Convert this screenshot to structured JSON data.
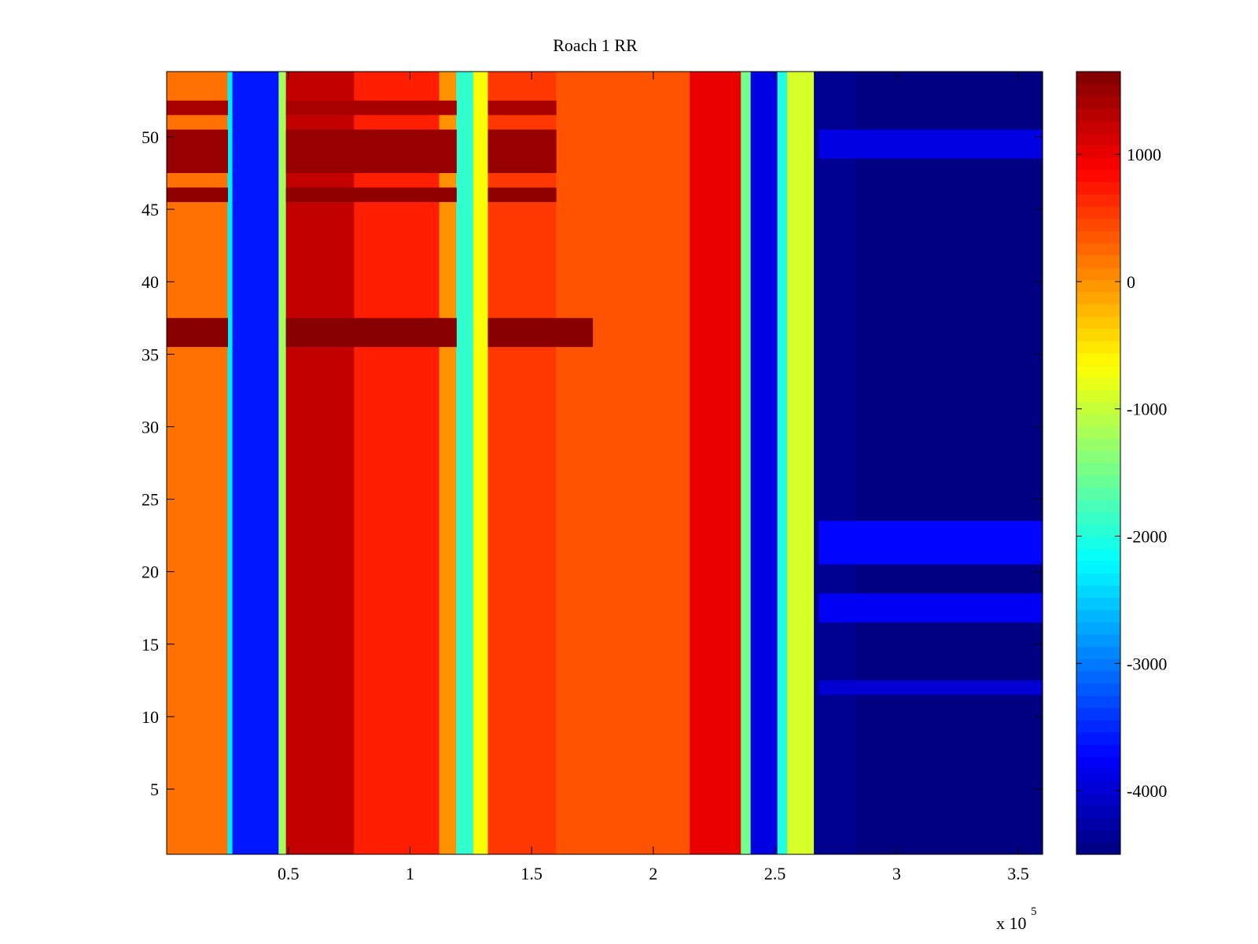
{
  "chart_data": {
    "type": "heatmap",
    "title": "Roach 1 RR",
    "xlabel": "",
    "ylabel": "",
    "x_range": [
      0,
      360000
    ],
    "y_range": [
      0.5,
      54.5
    ],
    "x_ticks": [
      50000,
      100000,
      150000,
      200000,
      250000,
      300000,
      350000
    ],
    "x_tick_labels": [
      "0.5",
      "1",
      "1.5",
      "2",
      "2.5",
      "3",
      "3.5"
    ],
    "x_exponent_label": "x 10",
    "x_exponent_power": "5",
    "y_ticks": [
      5,
      10,
      15,
      20,
      25,
      30,
      35,
      40,
      45,
      50
    ],
    "y_tick_labels": [
      "5",
      "10",
      "15",
      "20",
      "25",
      "30",
      "35",
      "40",
      "45",
      "50"
    ],
    "colorbar": {
      "colormap": "jet",
      "range": [
        -4500,
        1650
      ],
      "ticks": [
        1000,
        0,
        -1000,
        -2000,
        -3000,
        -4000
      ],
      "tick_labels": [
        "1000",
        "0",
        "-1000",
        "-2000",
        "-3000",
        "-4000"
      ]
    },
    "column_profile": [
      {
        "x_start": 0,
        "x_end": 25000,
        "value": 200
      },
      {
        "x_start": 25000,
        "x_end": 27000,
        "value": -2300
      },
      {
        "x_start": 27000,
        "x_end": 46000,
        "value": -3600
      },
      {
        "x_start": 46000,
        "x_end": 49000,
        "value": -1200
      },
      {
        "x_start": 49000,
        "x_end": 77000,
        "value": 1250
      },
      {
        "x_start": 77000,
        "x_end": 112000,
        "value": 700
      },
      {
        "x_start": 112000,
        "x_end": 119000,
        "value": 0
      },
      {
        "x_start": 119000,
        "x_end": 126000,
        "value": -1900
      },
      {
        "x_start": 126000,
        "x_end": 132000,
        "value": -700
      },
      {
        "x_start": 132000,
        "x_end": 160000,
        "value": 550
      },
      {
        "x_start": 160000,
        "x_end": 215000,
        "value": 380
      },
      {
        "x_start": 215000,
        "x_end": 236000,
        "value": 1000
      },
      {
        "x_start": 236000,
        "x_end": 240000,
        "value": -1500
      },
      {
        "x_start": 240000,
        "x_end": 251000,
        "value": -3900
      },
      {
        "x_start": 251000,
        "x_end": 255000,
        "value": -2000
      },
      {
        "x_start": 255000,
        "x_end": 266000,
        "value": -900
      },
      {
        "x_start": 266000,
        "x_end": 283000,
        "value": -4400
      },
      {
        "x_start": 283000,
        "x_end": 360000,
        "value": -4500
      }
    ],
    "row_bands": [
      {
        "y_start": 35.5,
        "y_end": 37.5,
        "x_end": 175000,
        "value": 1600
      },
      {
        "y_start": 45.5,
        "y_end": 46.5,
        "x_end": 160000,
        "value": 1550
      },
      {
        "y_start": 47.5,
        "y_end": 50.5,
        "x_end": 160000,
        "value": 1500
      },
      {
        "y_start": 51.5,
        "y_end": 52.5,
        "x_end": 160000,
        "value": 1400
      },
      {
        "y_start": 20.5,
        "y_end": 23.5,
        "x_end": 360000,
        "value": -3700
      },
      {
        "y_start": 16.5,
        "y_end": 18.5,
        "x_end": 360000,
        "value": -3800
      },
      {
        "y_start": 11.5,
        "y_end": 12.5,
        "x_end": 360000,
        "value": -4000
      },
      {
        "y_start": 48.5,
        "y_end": 50.5,
        "x_end": 360000,
        "value": -3900
      }
    ]
  }
}
